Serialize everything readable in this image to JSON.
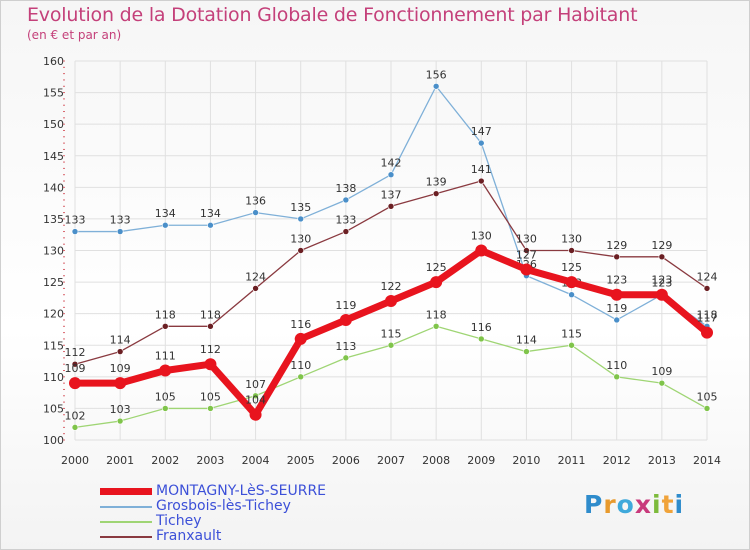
{
  "title": "Evolution de la Dotation Globale de Fonctionnement par Habitant",
  "subtitle": "(en € et par an)",
  "logo": "Proxiti",
  "colors": {
    "title": "#c4407a",
    "grid": "#e0e0e0",
    "axis_text": "#333333",
    "label_text": "#333333"
  },
  "chart_data": {
    "type": "line",
    "x": [
      2000,
      2001,
      2002,
      2003,
      2004,
      2005,
      2006,
      2007,
      2008,
      2009,
      2010,
      2011,
      2012,
      2013,
      2014
    ],
    "ylim": [
      100,
      160
    ],
    "yticks": [
      100,
      105,
      110,
      115,
      120,
      125,
      130,
      135,
      140,
      145,
      150,
      155,
      160
    ],
    "grid": true,
    "legend_position": "bottom-left",
    "series": [
      {
        "name": "Grosbois-lès-Tichey",
        "color": "#4a8fc9",
        "line_color": "#7fb0d8",
        "width": 1.3,
        "values": [
          133,
          133,
          134,
          134,
          136,
          135,
          138,
          142,
          156,
          147,
          126,
          123,
          119,
          123,
          118
        ]
      },
      {
        "name": "Tichey",
        "color": "#7fc44a",
        "line_color": "#9fd574",
        "width": 1.3,
        "values": [
          102,
          103,
          105,
          105,
          107,
          110,
          113,
          115,
          118,
          116,
          114,
          115,
          110,
          109,
          105
        ]
      },
      {
        "name": "Franxault",
        "color": "#6b1f23",
        "line_color": "#8a3a40",
        "width": 1.3,
        "values": [
          112,
          114,
          118,
          118,
          124,
          130,
          133,
          137,
          139,
          141,
          130,
          130,
          129,
          129,
          124
        ]
      },
      {
        "name": "MONTAGNY-LèS-SEURRE",
        "color": "#e8141e",
        "line_color": "#e8141e",
        "width": 7,
        "values": [
          109,
          109,
          111,
          112,
          104,
          116,
          119,
          122,
          125,
          130,
          127,
          125,
          123,
          123,
          117
        ]
      }
    ],
    "legend_order": [
      "MONTAGNY-LèS-SEURRE",
      "Grosbois-lès-Tichey",
      "Tichey",
      "Franxault"
    ],
    "legend_label_colors": {
      "MONTAGNY-LèS-SEURRE": "#3c50d8",
      "Grosbois-lès-Tichey": "#3c50d8",
      "Tichey": "#3c50d8",
      "Franxault": "#3c50d8"
    }
  }
}
